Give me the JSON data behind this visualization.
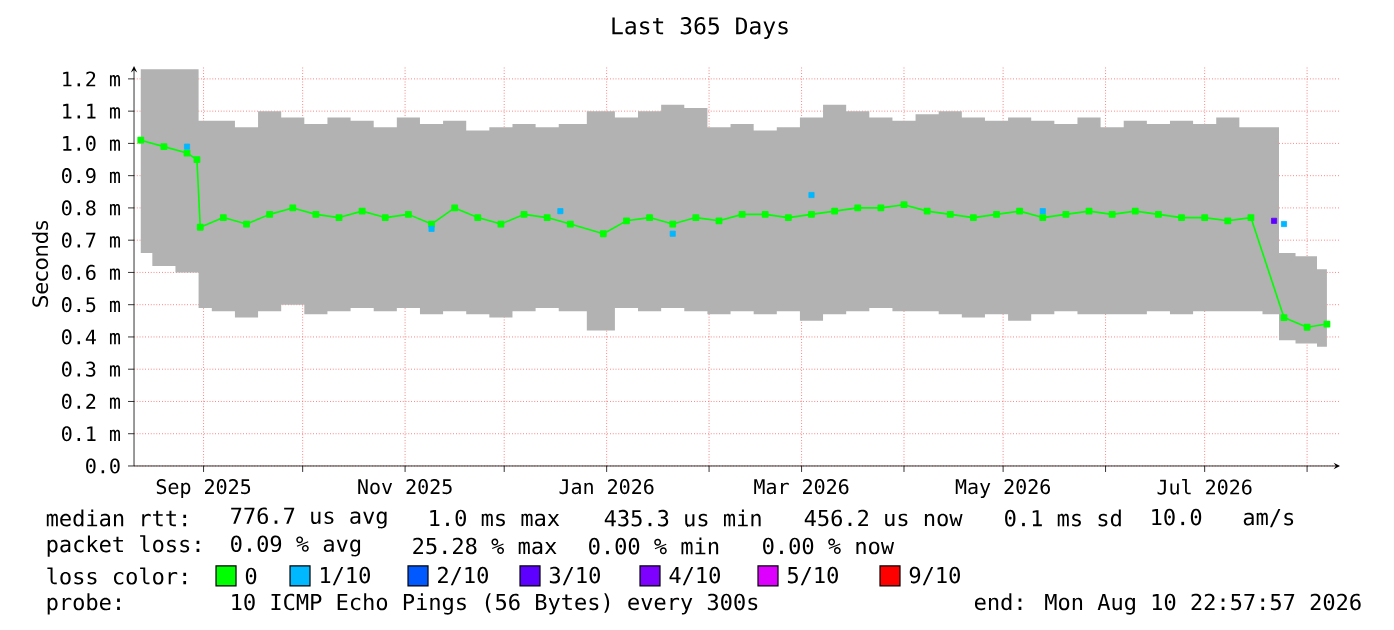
{
  "chart_data": {
    "type": "line",
    "title": "Last 365 Days",
    "ylabel": "Seconds",
    "xlim": [
      "2025-08-10T22:57",
      "2026-08-10T22:57"
    ],
    "xticks": [
      {
        "value": "2025-09-01",
        "label": "Sep 2025"
      },
      {
        "value": "2025-10-01",
        "label": null
      },
      {
        "value": "2025-11-01",
        "label": "Nov 2025"
      },
      {
        "value": "2025-12-01",
        "label": null
      },
      {
        "value": "2026-01-01",
        "label": "Jan 2026"
      },
      {
        "value": "2026-02-01",
        "label": null
      },
      {
        "value": "2026-03-01",
        "label": "Mar 2026"
      },
      {
        "value": "2026-04-01",
        "label": null
      },
      {
        "value": "2026-05-01",
        "label": "May 2026"
      },
      {
        "value": "2026-06-01",
        "label": null
      },
      {
        "value": "2026-07-01",
        "label": "Jul 2026"
      },
      {
        "value": "2026-08-01",
        "label": null
      }
    ],
    "ylim": [
      0,
      1.24
    ],
    "yticks": [
      {
        "value": 0,
        "label": "0.0"
      },
      {
        "value": 0.1,
        "label": "0.1 m"
      },
      {
        "value": 0.2,
        "label": "0.2 m"
      },
      {
        "value": 0.3,
        "label": "0.3 m"
      },
      {
        "value": 0.4,
        "label": "0.4 m"
      },
      {
        "value": 0.5,
        "label": "0.5 m"
      },
      {
        "value": 0.6,
        "label": "0.6 m"
      },
      {
        "value": 0.7,
        "label": "0.7 m"
      },
      {
        "value": 0.8,
        "label": "0.8 m"
      },
      {
        "value": 0.9,
        "label": "0.9 m"
      },
      {
        "value": 1.0,
        "label": "1.0 m"
      },
      {
        "value": 1.1,
        "label": "1.1 m"
      },
      {
        "value": 1.2,
        "label": "1.2 m"
      }
    ],
    "grid": true,
    "legend": "bottom",
    "marker": "square",
    "line_style": "solid",
    "series": [
      {
        "name": "0",
        "color": "#00ff00",
        "x": [
          "2025-08-13",
          "2025-08-20",
          "2025-08-27",
          "2025-08-30",
          "2025-08-31",
          "2025-09-07",
          "2025-09-14",
          "2025-09-21",
          "2025-09-28",
          "2025-10-05",
          "2025-10-12",
          "2025-10-19",
          "2025-10-26",
          "2025-11-02",
          "2025-11-09",
          "2025-11-16",
          "2025-11-23",
          "2025-11-30",
          "2025-12-07",
          "2025-12-14",
          "2025-12-21",
          "2025-12-31",
          "2026-01-07",
          "2026-01-14",
          "2026-01-21",
          "2026-01-28",
          "2026-02-04",
          "2026-02-11",
          "2026-02-18",
          "2026-02-25",
          "2026-03-04",
          "2026-03-11",
          "2026-03-18",
          "2026-03-25",
          "2026-04-01",
          "2026-04-08",
          "2026-04-15",
          "2026-04-22",
          "2026-04-29",
          "2026-05-06",
          "2026-05-13",
          "2026-05-20",
          "2026-05-27",
          "2026-06-03",
          "2026-06-10",
          "2026-06-17",
          "2026-06-24",
          "2026-07-01",
          "2026-07-08",
          "2026-07-15",
          "2026-07-22",
          "2026-07-25",
          "2026-08-01",
          "2026-08-07"
        ],
        "values": [
          1.01,
          0.99,
          0.97,
          0.95,
          0.74,
          0.77,
          0.75,
          0.78,
          0.8,
          0.78,
          0.77,
          0.79,
          0.77,
          0.78,
          0.75,
          0.8,
          0.77,
          0.75,
          0.78,
          0.77,
          0.75,
          0.72,
          0.76,
          0.77,
          0.75,
          0.77,
          0.76,
          0.78,
          0.78,
          0.77,
          0.78,
          0.79,
          0.8,
          0.8,
          0.81,
          0.79,
          0.78,
          0.77,
          0.78,
          0.79,
          0.77,
          0.78,
          0.79,
          0.78,
          0.79,
          0.78,
          0.77,
          0.77,
          0.76,
          0.77,
          null,
          0.46,
          0.43,
          0.44
        ],
        "lower": [
          0.66,
          0.62,
          0.6,
          0.6,
          0.49,
          0.48,
          0.46,
          0.48,
          0.5,
          0.47,
          0.48,
          0.49,
          0.48,
          0.49,
          0.47,
          0.48,
          0.47,
          0.46,
          0.48,
          0.49,
          0.48,
          0.42,
          0.49,
          0.48,
          0.49,
          0.48,
          0.47,
          0.48,
          0.47,
          0.48,
          0.45,
          0.47,
          0.48,
          0.49,
          0.48,
          0.48,
          0.47,
          0.46,
          0.47,
          0.45,
          0.47,
          0.48,
          0.47,
          0.47,
          0.47,
          0.48,
          0.47,
          0.48,
          0.48,
          0.48,
          0.47,
          0.39,
          0.38,
          0.37
        ],
        "upper": [
          1.23,
          1.23,
          1.23,
          1.23,
          1.07,
          1.07,
          1.05,
          1.1,
          1.08,
          1.06,
          1.08,
          1.07,
          1.05,
          1.08,
          1.06,
          1.07,
          1.04,
          1.05,
          1.06,
          1.05,
          1.06,
          1.1,
          1.08,
          1.1,
          1.12,
          1.11,
          1.05,
          1.06,
          1.04,
          1.05,
          1.08,
          1.12,
          1.1,
          1.08,
          1.07,
          1.09,
          1.1,
          1.08,
          1.07,
          1.08,
          1.07,
          1.06,
          1.08,
          1.05,
          1.07,
          1.06,
          1.07,
          1.06,
          1.08,
          1.05,
          1.05,
          0.66,
          0.65,
          0.61
        ]
      },
      {
        "name": "1/10",
        "color": "#00b8ff",
        "type": "scatter",
        "x": [
          "2025-08-27",
          "2025-11-09",
          "2025-12-18",
          "2026-01-21",
          "2026-03-04",
          "2026-05-13",
          "2026-07-25"
        ],
        "values": [
          0.99,
          0.735,
          0.79,
          0.72,
          0.84,
          0.79,
          0.75
        ]
      },
      {
        "name": "2/10",
        "color": "#0059ff",
        "type": "scatter"
      },
      {
        "name": "3/10",
        "color": "#5e00ff",
        "type": "scatter",
        "x": [
          "2026-07-22"
        ],
        "values": [
          0.76
        ]
      },
      {
        "name": "4/10",
        "color": "#7e00ff",
        "type": "scatter"
      },
      {
        "name": "5/10",
        "color": "#dd00ff",
        "type": "scatter"
      },
      {
        "name": "9/10",
        "color": "#ff0000",
        "type": "scatter"
      }
    ],
    "annotations": [
      "median rtt:",
      "776.7 us avg",
      "1.0 ms max",
      "435.3 us min",
      "456.2 us now",
      "0.1 ms sd",
      "10.0   am/s",
      "packet loss:",
      "0.09 % avg",
      "25.28 % max",
      "0.00 % min",
      "0.00 % now",
      "loss color:",
      "probe:",
      "10 ICMP Echo Pings (56 Bytes) every 300s",
      "end: Mon Aug 10 22:57:57 2026"
    ]
  }
}
